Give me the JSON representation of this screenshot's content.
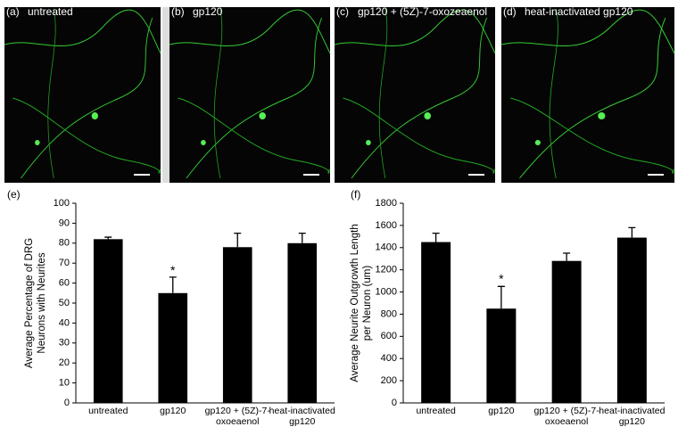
{
  "image_panels": [
    {
      "label": "(a)",
      "caption": "untreated"
    },
    {
      "label": "(b)",
      "caption": "gp120"
    },
    {
      "label": "(c)",
      "caption": "gp120 + (5Z)-7-oxozeaenol"
    },
    {
      "label": "(d)",
      "caption": "heat-inactivated gp120"
    }
  ],
  "chart_data": [
    {
      "type": "bar",
      "label": "(e)",
      "ylabel": [
        "Average Percentage of DRG",
        "Neurons with Neurites"
      ],
      "categories": [
        "untreated",
        "gp120",
        "gp120 + (5Z)-7-oxoeaenol",
        "heat-inactivated gp120"
      ],
      "series": [
        {
          "color": "#000000",
          "values": [
            82,
            55,
            78,
            80
          ],
          "errors": [
            1,
            8,
            7,
            5
          ]
        }
      ],
      "ylim": [
        0,
        100
      ],
      "yticks": [
        0,
        10,
        20,
        30,
        40,
        50,
        60,
        70,
        80,
        90,
        100
      ],
      "annotations": [
        {
          "text": "*",
          "category_index": 1,
          "y": 66
        }
      ]
    },
    {
      "type": "bar",
      "label": "(f)",
      "ylabel": [
        "Average Neurite Outgrowth Length",
        "per Neuron (um)"
      ],
      "categories": [
        "untreated",
        "gp120",
        "gp120 + (5Z)-7-oxoeaenol",
        "heat-inactivated gp120"
      ],
      "series": [
        {
          "color": "#000000",
          "values": [
            1450,
            850,
            1280,
            1490
          ],
          "errors": [
            80,
            200,
            70,
            90
          ]
        }
      ],
      "ylim": [
        0,
        1800
      ],
      "yticks": [
        0,
        200,
        400,
        600,
        800,
        1000,
        1200,
        1400,
        1600,
        1800
      ],
      "annotations": [
        {
          "text": "*",
          "category_index": 1,
          "y": 1110
        }
      ]
    }
  ]
}
